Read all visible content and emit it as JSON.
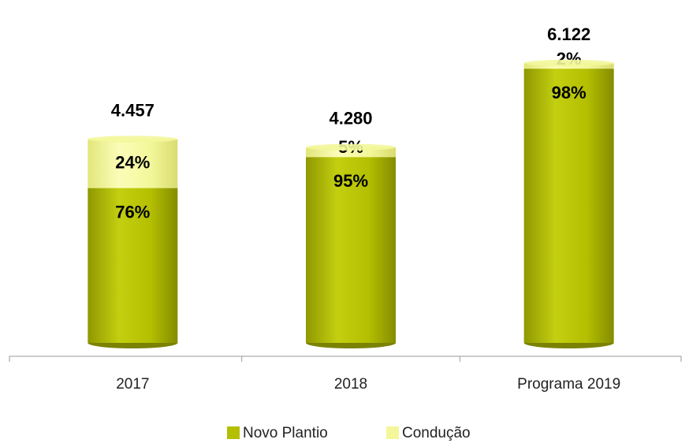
{
  "chart_data": {
    "type": "stacked_bar",
    "categories": [
      "2017",
      "2018",
      "Programa 2019"
    ],
    "totals": {
      "values": [
        4457,
        4280,
        6122
      ],
      "value_labels": [
        "4.457",
        "4.280",
        "6.122"
      ]
    },
    "series": [
      {
        "name": "Novo Plantio",
        "color": "#b3bf00",
        "values": [
          76,
          95,
          98
        ],
        "value_labels": [
          "76%",
          "95%",
          "98%"
        ]
      },
      {
        "name": "Condução",
        "color": "#f3f79a",
        "values": [
          24,
          5,
          2
        ],
        "value_labels": [
          "24%",
          "5%",
          "2%"
        ]
      }
    ],
    "legend": "bottom"
  }
}
